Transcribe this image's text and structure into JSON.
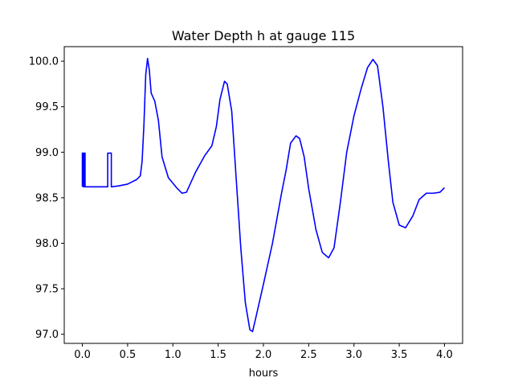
{
  "chart_data": {
    "type": "line",
    "title": "Water Depth h at gauge 115",
    "xlabel": "hours",
    "ylabel": "",
    "xlim": [
      -0.2,
      4.2
    ],
    "ylim": [
      96.9,
      100.16
    ],
    "xticks": [
      0.0,
      0.5,
      1.0,
      1.5,
      2.0,
      2.5,
      3.0,
      3.5,
      4.0
    ],
    "xtick_labels": [
      "0.0",
      "0.5",
      "1.0",
      "1.5",
      "2.0",
      "2.5",
      "3.0",
      "3.5",
      "4.0"
    ],
    "yticks": [
      97.0,
      97.5,
      98.0,
      98.5,
      99.0,
      99.5,
      100.0
    ],
    "ytick_labels": [
      "97.0",
      "97.5",
      "98.0",
      "98.5",
      "99.0",
      "99.5",
      "100.0"
    ],
    "grid": false,
    "series": [
      {
        "color": "#0000ff",
        "points": [
          [
            0.0,
            98.62
          ],
          [
            0.0,
            98.99
          ],
          [
            0.01,
            98.99
          ],
          [
            0.01,
            98.62
          ],
          [
            0.02,
            98.62
          ],
          [
            0.02,
            98.99
          ],
          [
            0.03,
            98.99
          ],
          [
            0.03,
            98.62
          ],
          [
            0.28,
            98.62
          ],
          [
            0.28,
            98.99
          ],
          [
            0.32,
            98.99
          ],
          [
            0.32,
            98.62
          ],
          [
            0.4,
            98.63
          ],
          [
            0.5,
            98.65
          ],
          [
            0.6,
            98.7
          ],
          [
            0.64,
            98.74
          ],
          [
            0.66,
            98.9
          ],
          [
            0.68,
            99.3
          ],
          [
            0.7,
            99.85
          ],
          [
            0.72,
            100.03
          ],
          [
            0.74,
            99.9
          ],
          [
            0.76,
            99.65
          ],
          [
            0.8,
            99.56
          ],
          [
            0.84,
            99.35
          ],
          [
            0.88,
            98.95
          ],
          [
            0.95,
            98.72
          ],
          [
            1.05,
            98.6
          ],
          [
            1.1,
            98.55
          ],
          [
            1.15,
            98.56
          ],
          [
            1.25,
            98.78
          ],
          [
            1.35,
            98.96
          ],
          [
            1.43,
            99.07
          ],
          [
            1.48,
            99.28
          ],
          [
            1.52,
            99.58
          ],
          [
            1.57,
            99.78
          ],
          [
            1.6,
            99.75
          ],
          [
            1.65,
            99.45
          ],
          [
            1.7,
            98.7
          ],
          [
            1.75,
            97.95
          ],
          [
            1.8,
            97.35
          ],
          [
            1.85,
            97.05
          ],
          [
            1.88,
            97.03
          ],
          [
            1.92,
            97.2
          ],
          [
            2.0,
            97.55
          ],
          [
            2.1,
            98.0
          ],
          [
            2.2,
            98.55
          ],
          [
            2.25,
            98.8
          ],
          [
            2.3,
            99.1
          ],
          [
            2.36,
            99.18
          ],
          [
            2.4,
            99.15
          ],
          [
            2.45,
            98.95
          ],
          [
            2.5,
            98.6
          ],
          [
            2.58,
            98.15
          ],
          [
            2.65,
            97.9
          ],
          [
            2.72,
            97.84
          ],
          [
            2.78,
            97.95
          ],
          [
            2.85,
            98.45
          ],
          [
            2.92,
            99.0
          ],
          [
            3.0,
            99.4
          ],
          [
            3.08,
            99.7
          ],
          [
            3.15,
            99.93
          ],
          [
            3.21,
            100.02
          ],
          [
            3.26,
            99.95
          ],
          [
            3.32,
            99.5
          ],
          [
            3.38,
            98.9
          ],
          [
            3.43,
            98.45
          ],
          [
            3.5,
            98.2
          ],
          [
            3.57,
            98.17
          ],
          [
            3.65,
            98.3
          ],
          [
            3.72,
            98.48
          ],
          [
            3.8,
            98.55
          ],
          [
            3.88,
            98.55
          ],
          [
            3.95,
            98.56
          ],
          [
            4.0,
            98.61
          ]
        ]
      }
    ]
  }
}
